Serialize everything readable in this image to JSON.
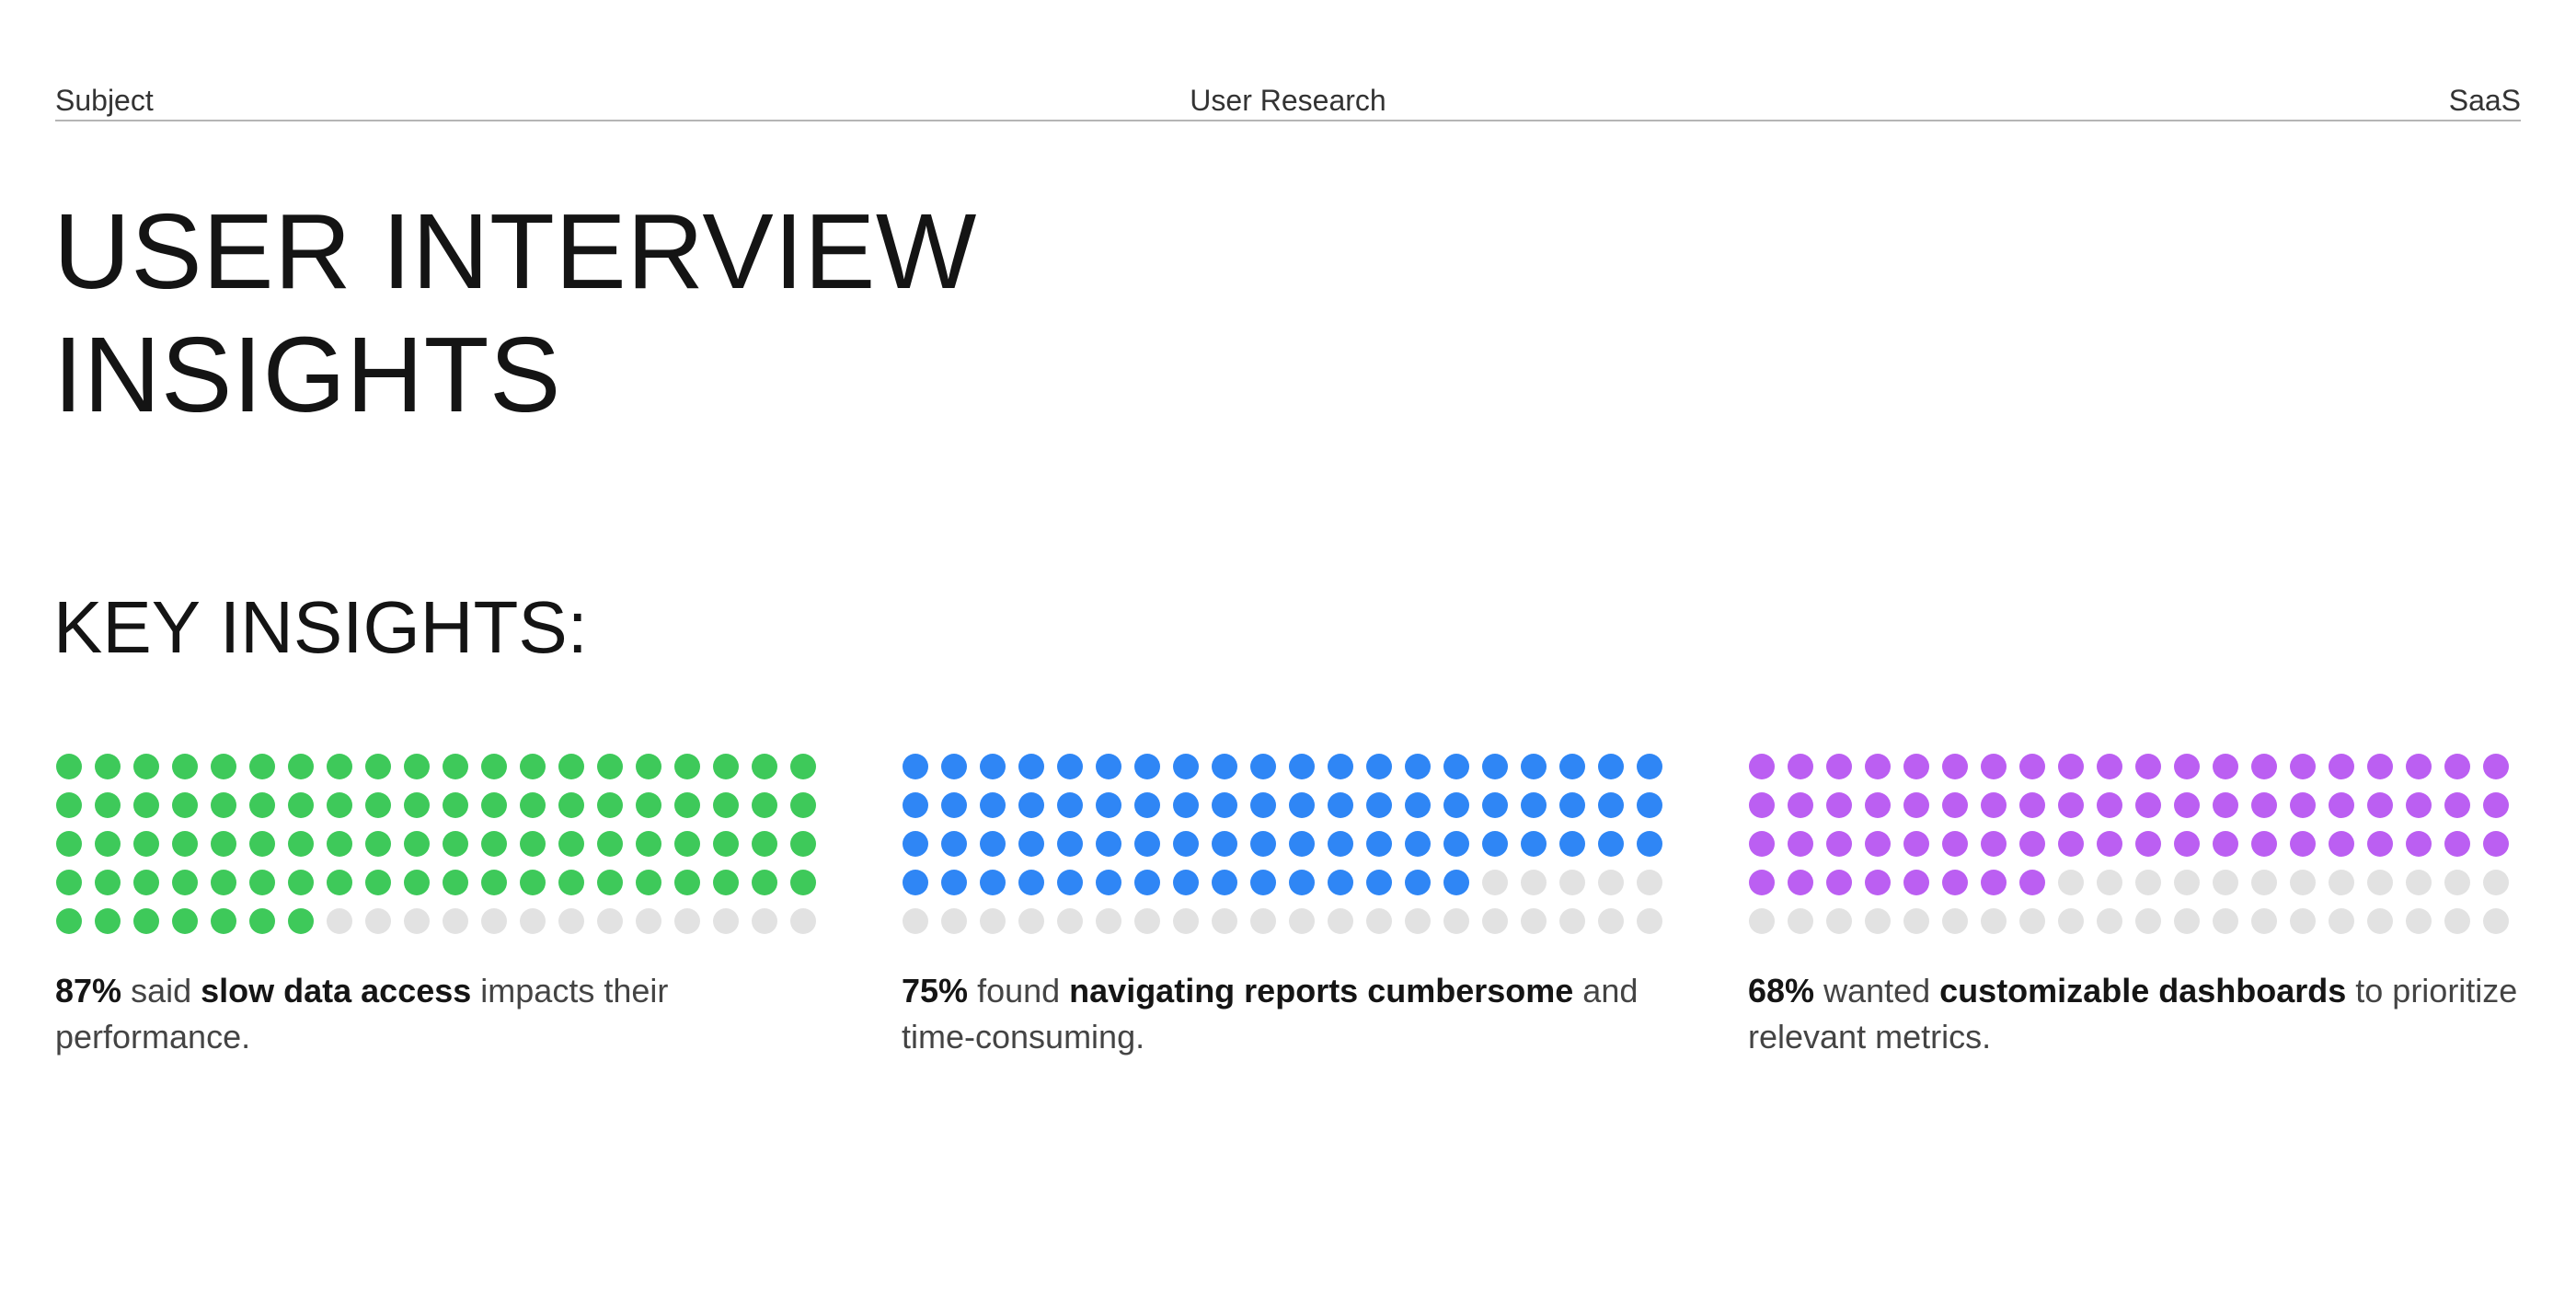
{
  "header": {
    "left": "Subject",
    "center": "User Research",
    "right": "SaaS"
  },
  "title": {
    "line1": "USER INTERVIEW",
    "line2": "INSIGHTS"
  },
  "section_title": "KEY INSIGHTS:",
  "colors": {
    "green": "#3ec95a",
    "blue": "#2f86f5",
    "purple": "#bb5ff2",
    "empty": "#e2e2e2"
  },
  "insights": [
    {
      "percent": "87%",
      "verb": " said ",
      "emphasis": "slow data access",
      "rest": " impacts their performance."
    },
    {
      "percent": "75%",
      "verb": " found ",
      "emphasis": "navigating reports cumbersome",
      "rest": " and time-consuming."
    },
    {
      "percent": "68%",
      "verb": " wanted ",
      "emphasis": "customizable dashboards",
      "rest": " to prioritize relevant metrics."
    }
  ],
  "chart_data": [
    {
      "type": "waffle",
      "title": "",
      "total": 100,
      "values": [
        87
      ],
      "color": "#3ec95a",
      "empty_color": "#e2e2e2"
    },
    {
      "type": "waffle",
      "title": "",
      "total": 100,
      "values": [
        75
      ],
      "color": "#2f86f5",
      "empty_color": "#e2e2e2"
    },
    {
      "type": "waffle",
      "title": "",
      "total": 100,
      "values": [
        68
      ],
      "color": "#bb5ff2",
      "empty_color": "#e2e2e2"
    }
  ]
}
